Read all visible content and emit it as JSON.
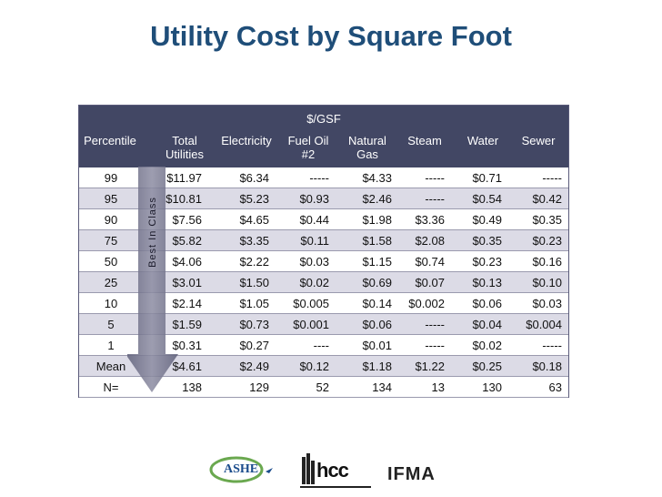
{
  "title": "Utility Cost by Square Foot",
  "table": {
    "group_header": "$/GSF",
    "columns": [
      "Percentile",
      "Total\nUtilities",
      "Electricity",
      "Fuel Oil\n#2",
      "Natural\nGas",
      "Steam",
      "Water",
      "Sewer"
    ],
    "rows": [
      [
        "99",
        "$11.97",
        "$6.34",
        "-----",
        "$4.33",
        "-----",
        "$0.71",
        "-----"
      ],
      [
        "95",
        "$10.81",
        "$5.23",
        "$0.93",
        "$2.46",
        "-----",
        "$0.54",
        "$0.42"
      ],
      [
        "90",
        "$7.56",
        "$4.65",
        "$0.44",
        "$1.98",
        "$3.36",
        "$0.49",
        "$0.35"
      ],
      [
        "75",
        "$5.82",
        "$3.35",
        "$0.11",
        "$1.58",
        "$2.08",
        "$0.35",
        "$0.23"
      ],
      [
        "50",
        "$4.06",
        "$2.22",
        "$0.03",
        "$1.15",
        "$0.74",
        "$0.23",
        "$0.16"
      ],
      [
        "25",
        "$3.01",
        "$1.50",
        "$0.02",
        "$0.69",
        "$0.07",
        "$0.13",
        "$0.10"
      ],
      [
        "10",
        "$2.14",
        "$1.05",
        "$0.005",
        "$0.14",
        "$0.002",
        "$0.06",
        "$0.03"
      ],
      [
        "5",
        "$1.59",
        "$0.73",
        "$0.001",
        "$0.06",
        "-----",
        "$0.04",
        "$0.004"
      ],
      [
        "1",
        "$0.31",
        "$0.27",
        "----",
        "$0.01",
        "-----",
        "$0.02",
        "-----"
      ],
      [
        "Mean",
        "$4.61",
        "$2.49",
        "$0.12",
        "$1.18",
        "$1.22",
        "$0.25",
        "$0.18"
      ],
      [
        "N=",
        "138",
        "129",
        "52",
        "134",
        "13",
        "130",
        "63"
      ]
    ]
  },
  "arrow_label": "Best In Class",
  "logos": {
    "ashe": "ASHE",
    "hcc": "hcc",
    "ifma": "IFMA"
  },
  "colors": {
    "title": "#1f4e79",
    "header_bg": "#424764",
    "row_alt": "#dcdbe6",
    "arrow": "#6f6f86"
  }
}
